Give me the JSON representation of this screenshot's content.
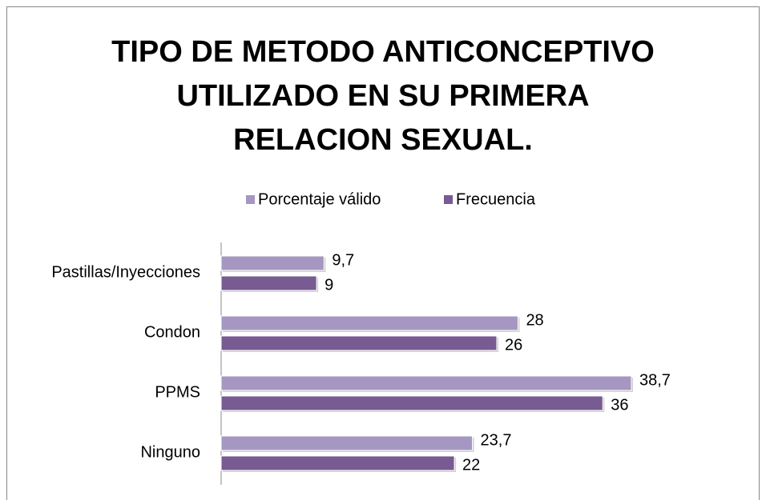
{
  "chart_data": {
    "type": "hbar",
    "title": "TIPO DE METODO ANTICONCEPTIVO UTILIZADO EN SU PRIMERA RELACION SEXUAL.",
    "categories": [
      "Pastillas/Inyecciones",
      "Condon",
      "PPMS",
      "Ninguno"
    ],
    "series": [
      {
        "name": "Porcentaje válido",
        "color": "#a597c2",
        "values": [
          9.7,
          28,
          38.7,
          23.7
        ],
        "value_labels": [
          "9,7",
          "28",
          "38,7",
          "23,7"
        ]
      },
      {
        "name": "Frecuencia",
        "color": "#775b92",
        "values": [
          9,
          26,
          36,
          22
        ]
      }
    ],
    "legend": "top"
  }
}
